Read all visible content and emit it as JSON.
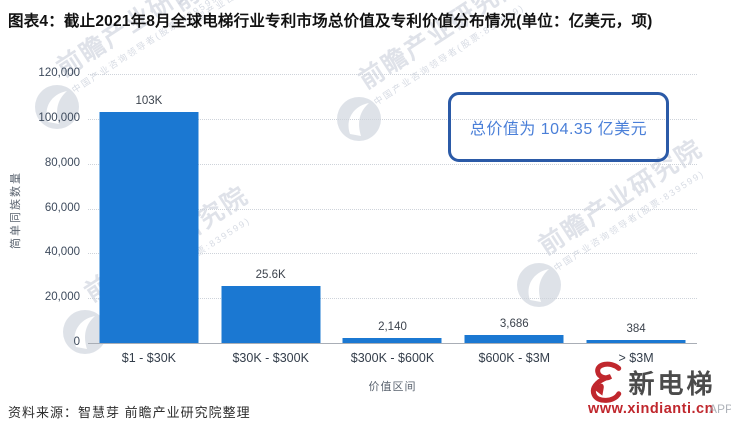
{
  "title": "图表4：截止2021年8月全球电梯行业专利市场总价值及专利价值分布情况(单位：亿美元，项)",
  "chart_data": {
    "type": "bar",
    "categories": [
      "$1 - $30K",
      "$30K - $300K",
      "$300K - $600K",
      "$600K - $3M",
      "> $3M"
    ],
    "values": [
      103000,
      25600,
      2140,
      3686,
      384
    ],
    "value_labels": [
      "103K",
      "25.6K",
      "2,140",
      "3,686",
      "384"
    ],
    "xlabel": "价值区间",
    "ylabel": "简单同族数量",
    "ylim": [
      0,
      120000
    ],
    "yticks": [
      "0",
      "20,000",
      "40,000",
      "60,000",
      "80,000",
      "100,000",
      "120,000"
    ],
    "grid": "horizontal-dotted",
    "legend": "none",
    "bar_color": "#1b78d2"
  },
  "annotation": {
    "text": "总价值为 104.35 亿美元",
    "border_color": "#2b5aa7",
    "text_color": "#4a7fd8"
  },
  "watermark": {
    "text": "前瞻产业研究院",
    "subtext": "中国产业咨询领导者(股票:839599)"
  },
  "source_note": "资料来源：智慧芽 前瞻产业研究院整理",
  "site_logo": {
    "name": "新电梯",
    "url": "www.xindianti.cn",
    "app_text": "APP"
  }
}
